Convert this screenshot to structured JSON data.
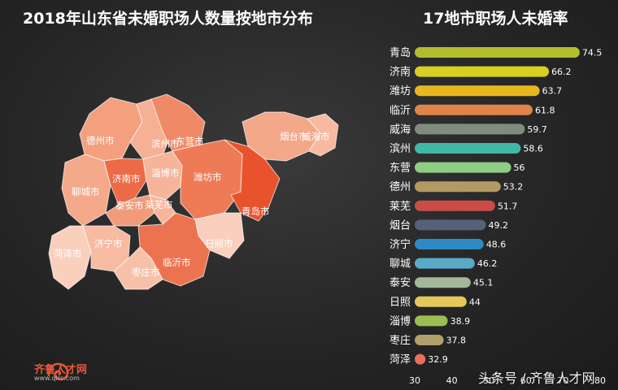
{
  "map": {
    "title": "2018年山东省未婚职场人数量按地市分布",
    "regions": [
      {
        "name": "德州市",
        "color": "#f4a07f"
      },
      {
        "name": "滨州市",
        "color": "#f6b094"
      },
      {
        "name": "东营市",
        "color": "#f08a66"
      },
      {
        "name": "烟台市",
        "color": "#f3a88a"
      },
      {
        "name": "威海市",
        "color": "#f7b99f"
      },
      {
        "name": "聊城市",
        "color": "#f5a98b"
      },
      {
        "name": "济南市",
        "color": "#ec6a45"
      },
      {
        "name": "淄博市",
        "color": "#f6b59a"
      },
      {
        "name": "潍坊市",
        "color": "#ee7b56"
      },
      {
        "name": "青岛市",
        "color": "#e8532e"
      },
      {
        "name": "泰安市",
        "color": "#f19b7b"
      },
      {
        "name": "莱芜市",
        "color": "#f6b69b"
      },
      {
        "name": "菏泽市",
        "color": "#fad0bd"
      },
      {
        "name": "济宁市",
        "color": "#f7bba2"
      },
      {
        "name": "日照市",
        "color": "#fbcfbd"
      },
      {
        "name": "临沂市",
        "color": "#ec7350"
      },
      {
        "name": "枣庄市",
        "color": "#f7c1a9"
      }
    ]
  },
  "chart_data": {
    "type": "bar",
    "orientation": "horizontal",
    "title": "17地市职场人未婚率",
    "categories": [
      "青岛",
      "济南",
      "潍坊",
      "临沂",
      "威海",
      "滨州",
      "东营",
      "德州",
      "莱芜",
      "烟台",
      "济宁",
      "聊城",
      "泰安",
      "日照",
      "淄博",
      "枣庄",
      "菏泽"
    ],
    "values": [
      74.5,
      66.2,
      63.7,
      61.8,
      59.7,
      58.6,
      56,
      53.2,
      51.7,
      49.2,
      48.6,
      46.2,
      45.1,
      44,
      38.9,
      37.8,
      32.9
    ],
    "value_labels": [
      "74.5",
      "66.2",
      "63.7",
      "61.8",
      "59.7",
      "58.6",
      "56",
      "53.2",
      "51.7",
      "49.2",
      "48.6",
      "46.2",
      "45.1",
      "44",
      "38.9",
      "37.8",
      "32.9"
    ],
    "colors": [
      "#b3bd2e",
      "#d8cf22",
      "#e6b81e",
      "#e0834a",
      "#7f8c7e",
      "#3fb8a8",
      "#8fcc84",
      "#b29a63",
      "#c94c47",
      "#56607a",
      "#2d8ac6",
      "#5aa9c9",
      "#a4b79a",
      "#e3c95a",
      "#9bbd54",
      "#b39f6a",
      "#e7705a"
    ],
    "xlim": [
      30,
      80
    ],
    "x_ticks": [
      "30",
      "40",
      "50",
      "60",
      "70",
      "80"
    ],
    "grid": false
  },
  "footer": {
    "logo_text": "齐鲁人才网",
    "logo_url": "www.qlrc.com",
    "watermark": "头条号 / 齐鲁人才网"
  }
}
